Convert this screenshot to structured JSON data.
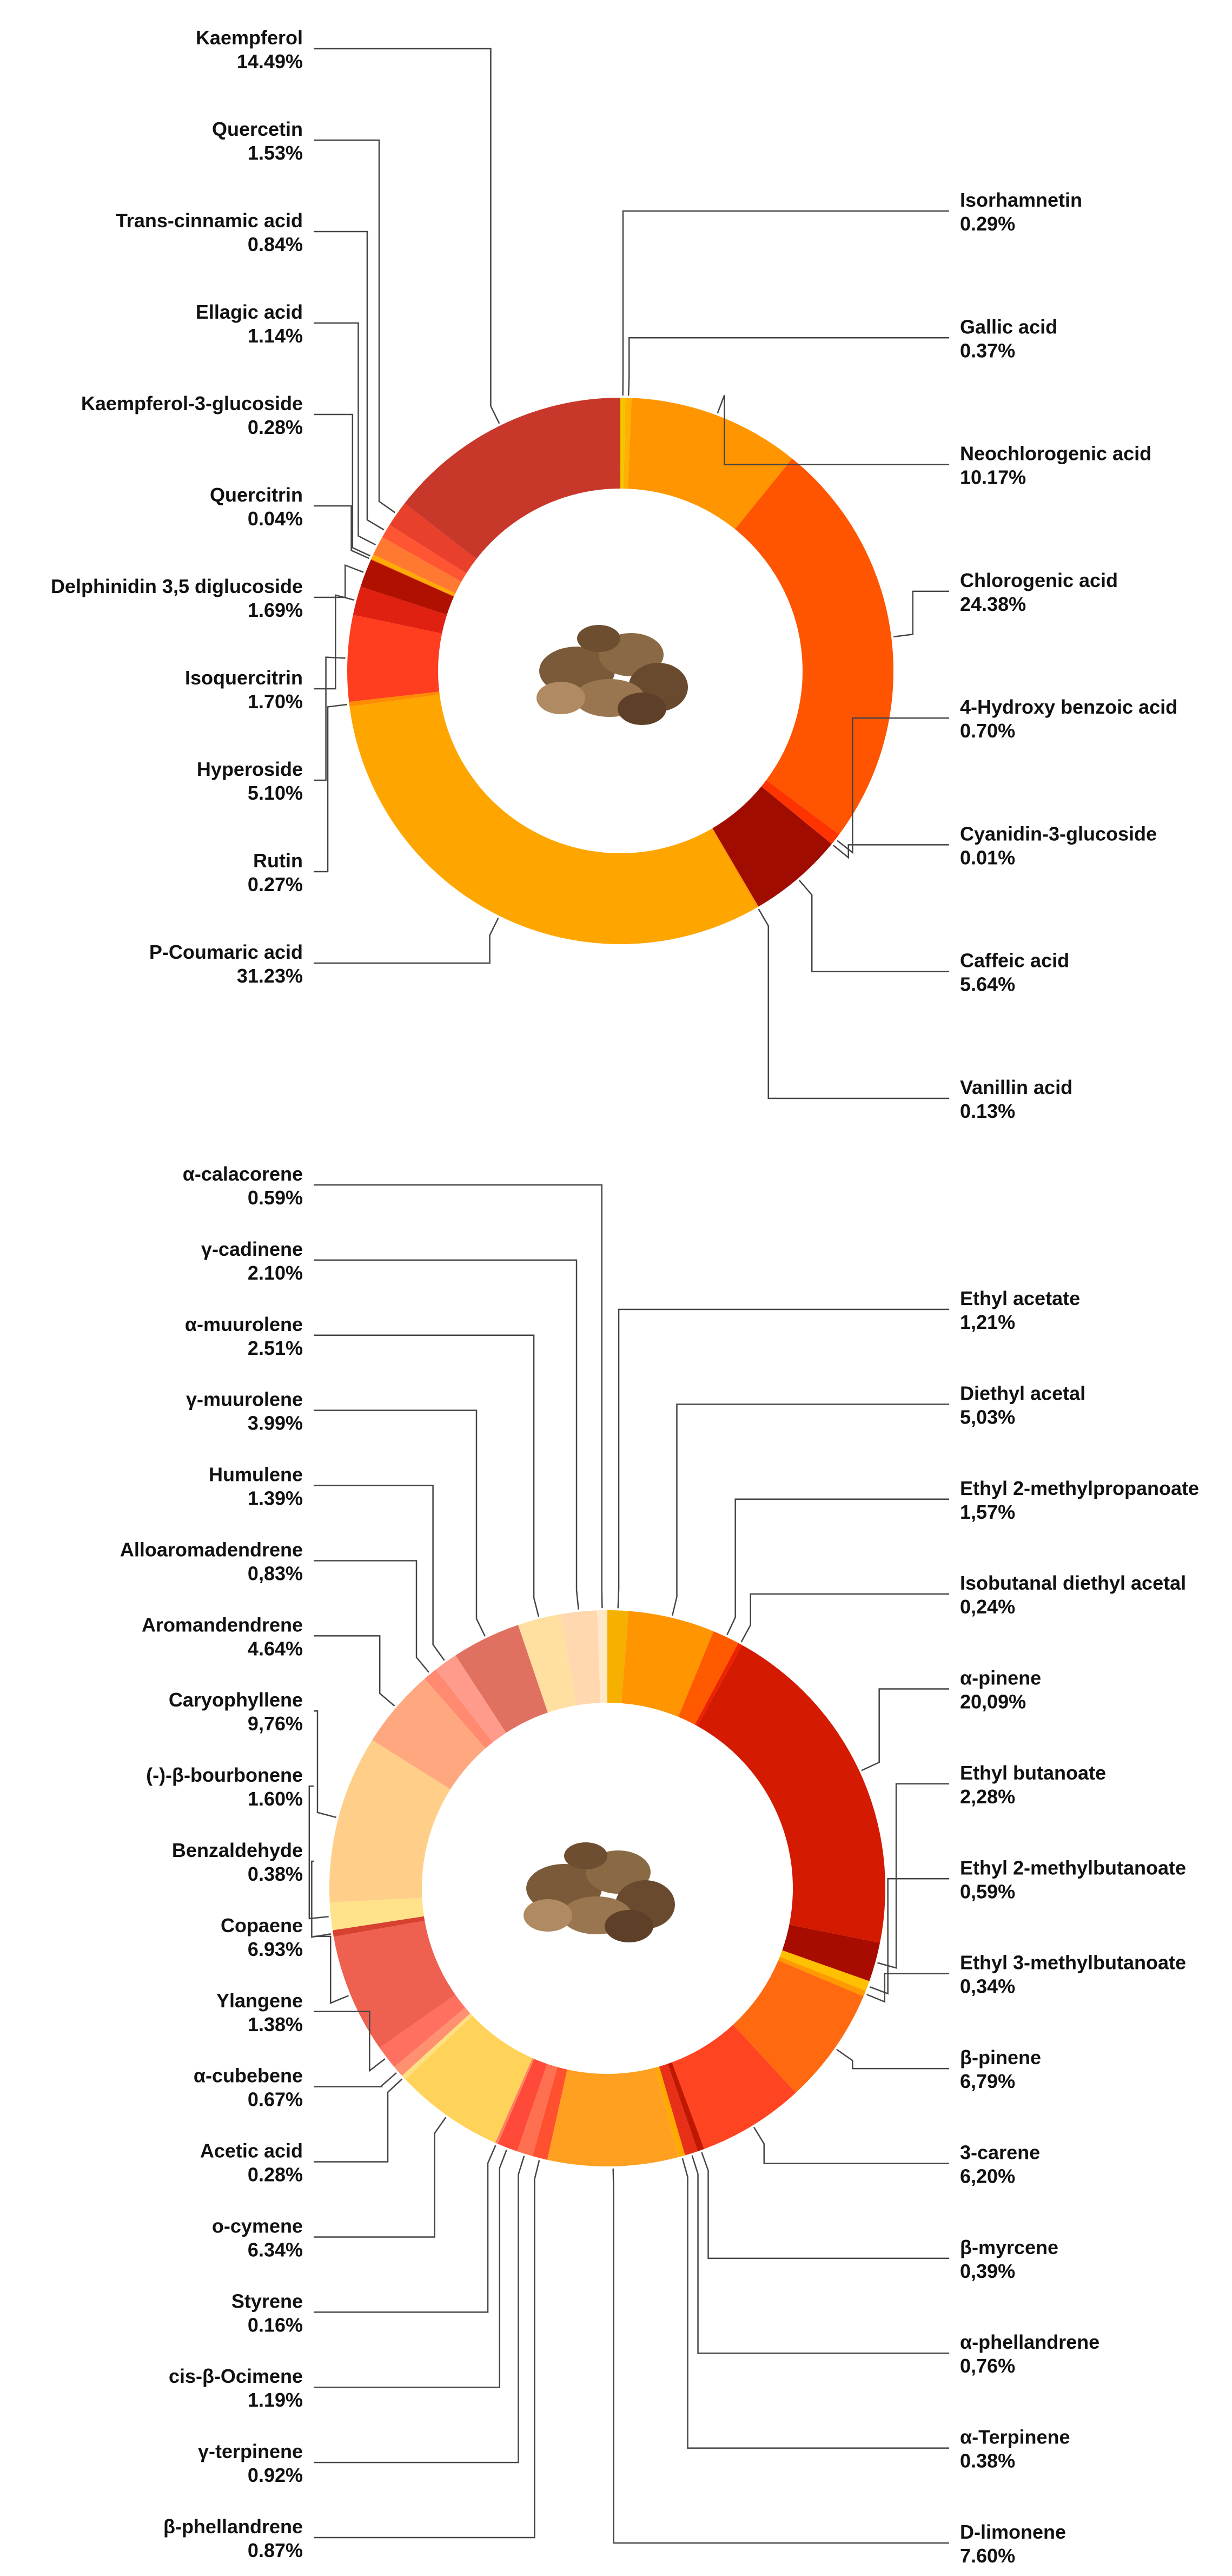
{
  "chart_data": [
    {
      "type": "donut",
      "categories": [
        "Isorhamnetin",
        "Gallic acid",
        "Neochlorogenic acid",
        "Chlorogenic acid",
        "4-Hydroxy benzoic acid",
        "Cyanidin-3-glucoside",
        "Caffeic acid",
        "Vanillin acid",
        "P-Coumaric acid",
        "Rutin",
        "Hyperoside",
        "Isoquercitrin",
        "Delphinidin 3,5 diglucoside",
        "Quercitrin",
        "Kaempferol-3-glucoside",
        "Ellagic acid",
        "Trans-cinnamic acid",
        "Quercetin",
        "Kaempferol"
      ],
      "values": [
        0.29,
        0.37,
        10.17,
        24.38,
        0.7,
        0.01,
        5.64,
        0.13,
        31.23,
        0.27,
        5.1,
        1.7,
        1.69,
        0.04,
        0.28,
        1.14,
        0.84,
        1.53,
        14.49
      ],
      "value_labels": [
        "0.29%",
        "0.37%",
        "10.17%",
        "24.38%",
        "0.70%",
        "0.01%",
        "5.64%",
        "0.13%",
        "31.23%",
        "0.27%",
        "5.10%",
        "1.70%",
        "1.69%",
        "0.04%",
        "0.28%",
        "1.14%",
        "0.84%",
        "1.53%",
        "14.49%"
      ],
      "colors": [
        "#f5c400",
        "#ffb000",
        "#ff9500",
        "#ff5500",
        "#ff3300",
        "#ee0000",
        "#a00c00",
        "#ff9900",
        "#ffa500",
        "#ff8c00",
        "#ff3d1f",
        "#e02010",
        "#b01000",
        "#ff6600",
        "#ffaa00",
        "#ff7a30",
        "#ff5533",
        "#e8402a",
        "#c8382a"
      ]
    },
    {
      "type": "donut",
      "categories": [
        "Ethyl acetate",
        "Diethyl acetal",
        "Ethyl 2-methylpropanoate",
        "Isobutanal diethyl acetal",
        "α-pinene",
        "Ethyl butanoate",
        "Ethyl 2-methylbutanoate",
        "Ethyl 3-methylbutanoate",
        "β-pinene",
        "3-carene",
        "β-myrcene",
        "α-phellandrene",
        "α-Terpinene",
        "D-limonene",
        "β-phellandrene",
        "γ-terpinene",
        "cis-β-Ocimene",
        "Styrene",
        "o-cymene",
        "Acetic acid",
        "α-cubebene",
        "Ylangene",
        "Copaene",
        "Benzaldehyde",
        "(-)-β-bourbonene",
        "Caryophyllene",
        "Aromandendrene",
        "Alloaromadendrene",
        "Humulene",
        "γ-muurolene",
        "α-muurolene",
        "γ-cadinene",
        "α-calacorene"
      ],
      "values": [
        1.21,
        5.03,
        1.57,
        0.24,
        20.09,
        2.28,
        0.59,
        0.34,
        6.79,
        6.2,
        0.39,
        0.76,
        0.38,
        7.6,
        0.87,
        0.92,
        1.19,
        0.16,
        6.34,
        0.28,
        0.67,
        1.38,
        6.93,
        0.38,
        1.6,
        9.76,
        4.64,
        0.83,
        1.39,
        3.99,
        2.51,
        2.1,
        0.59
      ],
      "value_labels": [
        "1,21%",
        "5,03%",
        "1,57%",
        "0,24%",
        "20,09%",
        "2,28%",
        "0,59%",
        "0,34%",
        "6,79%",
        "6,20%",
        "0,39%",
        "0,76%",
        "0.38%",
        "7.60%",
        "0.87%",
        "0.92%",
        "1.19%",
        "0.16%",
        "6.34%",
        "0.28%",
        "0.67%",
        "1.38%",
        "6.93%",
        "0.38%",
        "1.60%",
        "9,76%",
        "4.64%",
        "0,83%",
        "1.39%",
        "3.99%",
        "2.51%",
        "2.10%",
        "0.59%"
      ],
      "colors": [
        "#f5b000",
        "#ff9500",
        "#ff5a00",
        "#ee2200",
        "#d41a00",
        "#a80c00",
        "#ffc000",
        "#ff9a00",
        "#ff6a10",
        "#ff4422",
        "#c01800",
        "#e83018",
        "#ffaa00",
        "#ffa020",
        "#ff5030",
        "#ff7050",
        "#ff4a3a",
        "#ff8060",
        "#ffd35a",
        "#ffe080",
        "#ff9070",
        "#ff7060",
        "#ee6050",
        "#d84030",
        "#ffe28a",
        "#ffcf8a",
        "#ffa880",
        "#ff8a70",
        "#ff9b8a",
        "#e07060",
        "#ffe0a0",
        "#ffd8b0",
        "#ffe8c8"
      ]
    }
  ]
}
